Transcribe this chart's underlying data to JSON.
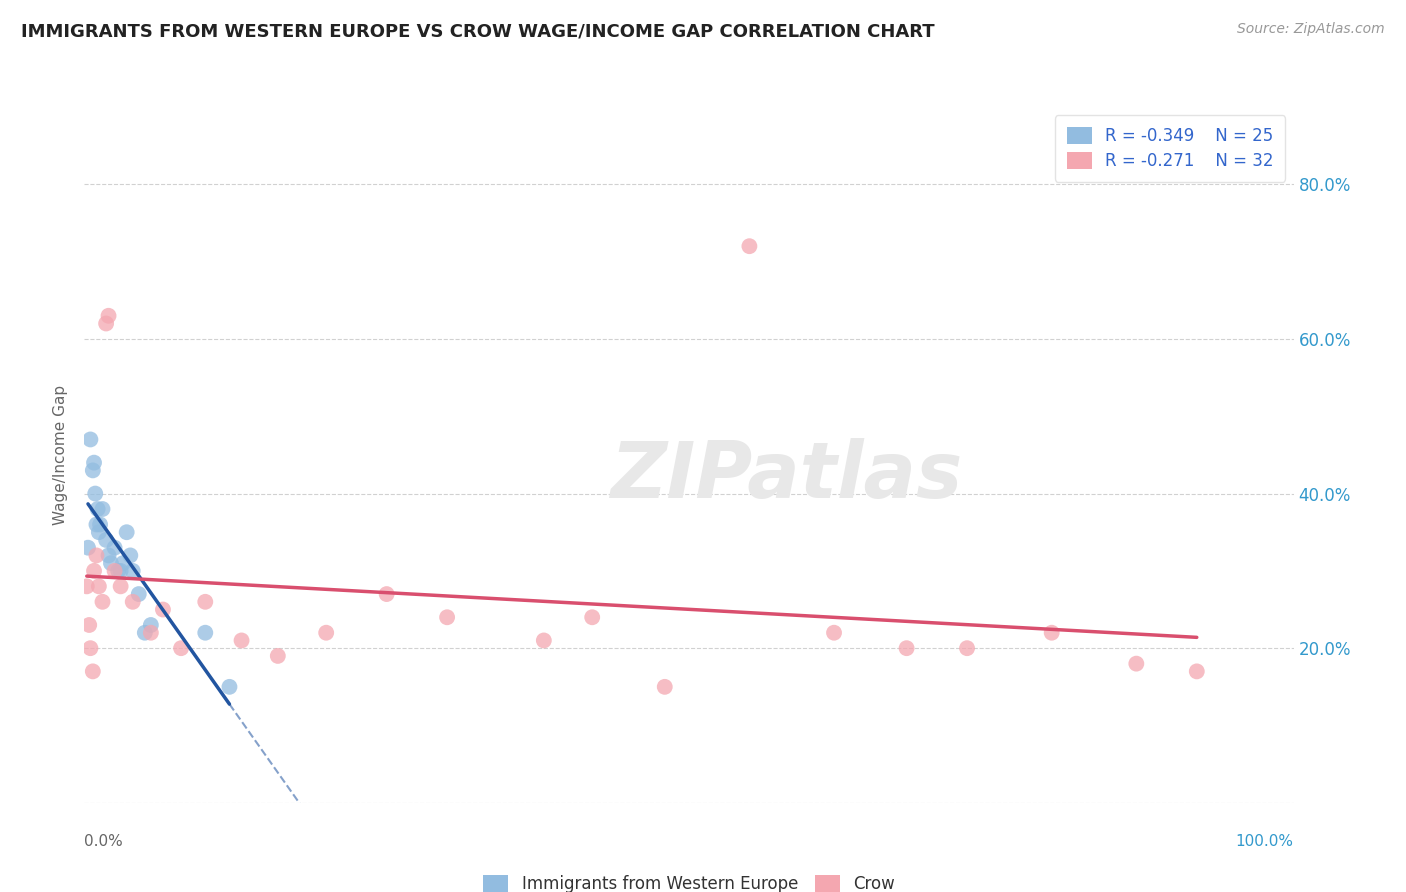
{
  "title": "IMMIGRANTS FROM WESTERN EUROPE VS CROW WAGE/INCOME GAP CORRELATION CHART",
  "source": "Source: ZipAtlas.com",
  "ylabel": "Wage/Income Gap",
  "xlim": [
    0,
    1.0
  ],
  "ylim": [
    0.0,
    0.9
  ],
  "xticks": [
    0.0,
    0.25,
    0.5,
    0.75,
    1.0
  ],
  "xticklabels_outer": [
    "0.0%",
    "",
    "",
    "",
    "100.0%"
  ],
  "yticks": [
    0.0,
    0.2,
    0.4,
    0.6,
    0.8
  ],
  "yticklabels_right": [
    "",
    "20.0%",
    "40.0%",
    "60.0%",
    "80.0%"
  ],
  "legend_r1": "R = -0.349",
  "legend_n1": "N = 25",
  "legend_r2": "R = -0.271",
  "legend_n2": "N = 32",
  "blue_color": "#92bce0",
  "pink_color": "#f4a7b0",
  "blue_line_color": "#2255a0",
  "pink_line_color": "#d94f6e",
  "legend_text_color": "#3366cc",
  "background_color": "#ffffff",
  "grid_color": "#cccccc",
  "blue_label": "Immigrants from Western Europe",
  "crow_label": "Crow",
  "blue_x": [
    0.003,
    0.005,
    0.007,
    0.008,
    0.009,
    0.01,
    0.011,
    0.012,
    0.013,
    0.015,
    0.018,
    0.02,
    0.022,
    0.025,
    0.028,
    0.03,
    0.032,
    0.035,
    0.038,
    0.04,
    0.045,
    0.05,
    0.055,
    0.1,
    0.12
  ],
  "blue_y": [
    0.33,
    0.47,
    0.43,
    0.44,
    0.4,
    0.36,
    0.38,
    0.35,
    0.36,
    0.38,
    0.34,
    0.32,
    0.31,
    0.33,
    0.3,
    0.3,
    0.31,
    0.35,
    0.32,
    0.3,
    0.27,
    0.22,
    0.23,
    0.22,
    0.15
  ],
  "pink_x": [
    0.002,
    0.004,
    0.005,
    0.007,
    0.008,
    0.01,
    0.012,
    0.015,
    0.018,
    0.02,
    0.025,
    0.03,
    0.04,
    0.055,
    0.065,
    0.08,
    0.1,
    0.13,
    0.16,
    0.2,
    0.25,
    0.3,
    0.38,
    0.42,
    0.48,
    0.55,
    0.62,
    0.68,
    0.73,
    0.8,
    0.87,
    0.92
  ],
  "pink_y": [
    0.28,
    0.23,
    0.2,
    0.17,
    0.3,
    0.32,
    0.28,
    0.26,
    0.62,
    0.63,
    0.3,
    0.28,
    0.26,
    0.22,
    0.25,
    0.2,
    0.26,
    0.21,
    0.19,
    0.22,
    0.27,
    0.24,
    0.21,
    0.24,
    0.15,
    0.72,
    0.22,
    0.2,
    0.2,
    0.22,
    0.18,
    0.17
  ]
}
